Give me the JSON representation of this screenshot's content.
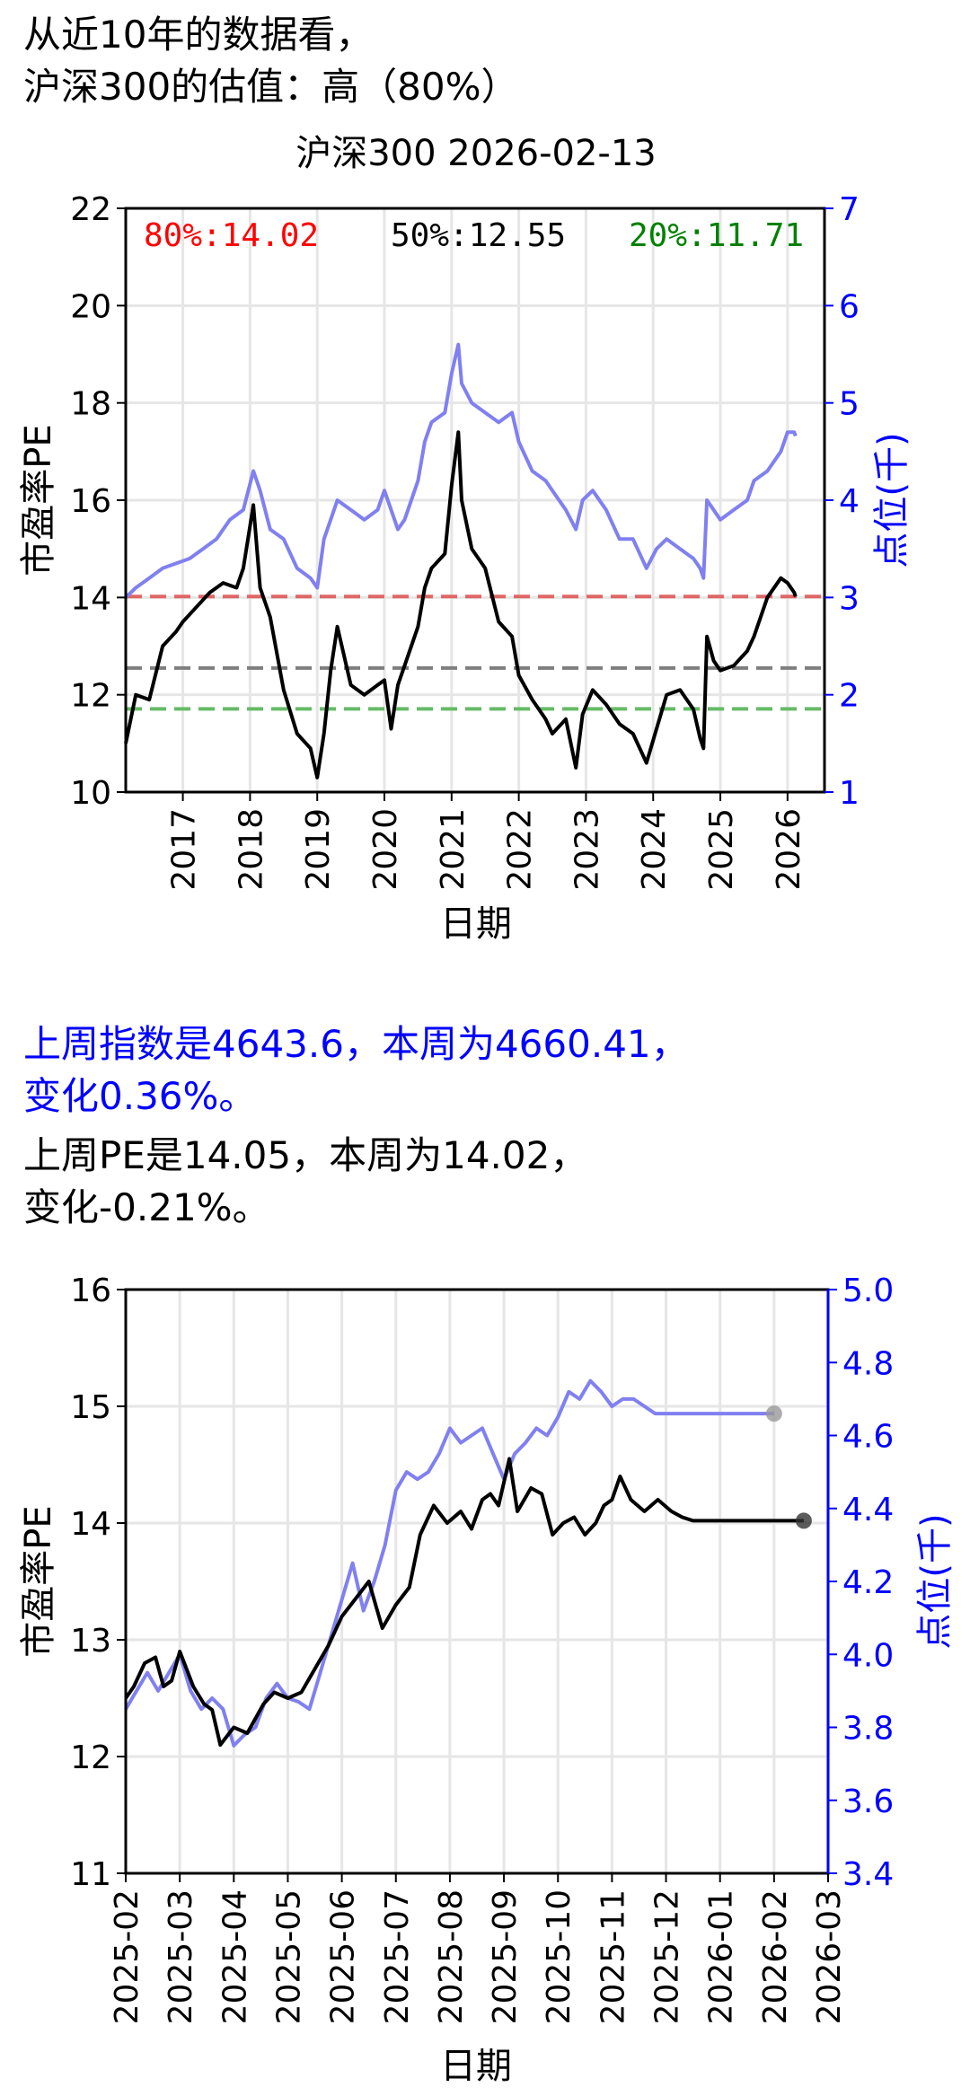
{
  "header": {
    "line1": "从近10年的数据看，",
    "line2": "沪深300的估值：高（80%）"
  },
  "summary": {
    "index_line1": "上周指数是4643.6，本周为4660.41，",
    "index_line2": "变化0.36%。",
    "pe_line1": "上周PE是14.05，本周为14.02，",
    "pe_line2": "变化-0.21%。"
  },
  "colors": {
    "pe": "#000000",
    "index": "#8080f0",
    "axis_right": "#0000ff",
    "p80": "#e06666",
    "p50": "#7f7f7f",
    "p20": "#66bb66"
  },
  "chart_data": [
    {
      "type": "line",
      "title": "沪深300 2026-02-13",
      "xlabel": "日期",
      "ylabel": "市盈率PE",
      "y2label": "点位(千)",
      "ylim": [
        10,
        22
      ],
      "y2lim": [
        1,
        7
      ],
      "xlim": [
        2016.15,
        2026.55
      ],
      "x_ticks": [
        "2017",
        "2018",
        "2019",
        "2020",
        "2021",
        "2022",
        "2023",
        "2024",
        "2025",
        "2026"
      ],
      "y_ticks": [
        "10",
        "12",
        "14",
        "16",
        "18",
        "20",
        "22"
      ],
      "y2_ticks": [
        "1",
        "2",
        "3",
        "4",
        "5",
        "6",
        "7"
      ],
      "grid": true,
      "percentile_lines": [
        {
          "label": "80%:14.02",
          "value": 14.02,
          "color": "#ff0000"
        },
        {
          "label": "50%:12.55",
          "value": 12.55,
          "color": "#000000"
        },
        {
          "label": "20%:11.71",
          "value": 11.71,
          "color": "#008000"
        }
      ],
      "series": [
        {
          "role": "pe",
          "axis": "left",
          "x": [
            2016.15,
            2016.3,
            2016.5,
            2016.7,
            2016.9,
            2017.0,
            2017.2,
            2017.4,
            2017.6,
            2017.8,
            2017.9,
            2018.05,
            2018.15,
            2018.3,
            2018.5,
            2018.7,
            2018.9,
            2019.0,
            2019.1,
            2019.2,
            2019.3,
            2019.5,
            2019.7,
            2019.9,
            2020.0,
            2020.1,
            2020.2,
            2020.3,
            2020.5,
            2020.6,
            2020.7,
            2020.9,
            2021.0,
            2021.1,
            2021.15,
            2021.3,
            2021.5,
            2021.7,
            2021.9,
            2022.0,
            2022.2,
            2022.4,
            2022.5,
            2022.7,
            2022.85,
            2022.95,
            2023.1,
            2023.3,
            2023.5,
            2023.7,
            2023.9,
            2024.05,
            2024.2,
            2024.4,
            2024.6,
            2024.7,
            2024.75,
            2024.8,
            2024.9,
            2025.0,
            2025.2,
            2025.4,
            2025.5,
            2025.7,
            2025.9,
            2026.0,
            2026.1,
            2026.12
          ],
          "y": [
            11.0,
            12.0,
            11.9,
            13.0,
            13.3,
            13.5,
            13.8,
            14.1,
            14.3,
            14.2,
            14.6,
            15.9,
            14.2,
            13.6,
            12.1,
            11.2,
            10.9,
            10.3,
            11.2,
            12.5,
            13.4,
            12.2,
            12.0,
            12.2,
            12.3,
            11.3,
            12.2,
            12.6,
            13.4,
            14.2,
            14.6,
            14.9,
            16.3,
            17.4,
            16.0,
            15.0,
            14.6,
            13.5,
            13.2,
            12.4,
            11.9,
            11.5,
            11.2,
            11.5,
            10.5,
            11.6,
            12.1,
            11.8,
            11.4,
            11.2,
            10.6,
            11.3,
            12.0,
            12.1,
            11.7,
            11.1,
            10.9,
            13.2,
            12.7,
            12.5,
            12.6,
            12.9,
            13.2,
            14.0,
            14.4,
            14.3,
            14.1,
            14.02
          ]
        },
        {
          "role": "index",
          "axis": "right",
          "x": [
            2016.15,
            2016.3,
            2016.5,
            2016.7,
            2016.9,
            2017.1,
            2017.3,
            2017.5,
            2017.7,
            2017.9,
            2018.05,
            2018.15,
            2018.3,
            2018.5,
            2018.7,
            2018.9,
            2019.0,
            2019.1,
            2019.2,
            2019.3,
            2019.5,
            2019.7,
            2019.9,
            2020.0,
            2020.1,
            2020.2,
            2020.3,
            2020.5,
            2020.6,
            2020.7,
            2020.9,
            2021.0,
            2021.1,
            2021.15,
            2021.3,
            2021.5,
            2021.7,
            2021.9,
            2022.0,
            2022.2,
            2022.4,
            2022.5,
            2022.7,
            2022.85,
            2022.95,
            2023.1,
            2023.3,
            2023.5,
            2023.7,
            2023.9,
            2024.05,
            2024.2,
            2024.4,
            2024.6,
            2024.7,
            2024.75,
            2024.8,
            2024.9,
            2025.0,
            2025.2,
            2025.4,
            2025.5,
            2025.7,
            2025.9,
            2026.0,
            2026.1,
            2026.12
          ],
          "y": [
            3.0,
            3.1,
            3.2,
            3.3,
            3.35,
            3.4,
            3.5,
            3.6,
            3.8,
            3.9,
            4.3,
            4.1,
            3.7,
            3.6,
            3.3,
            3.2,
            3.1,
            3.6,
            3.8,
            4.0,
            3.9,
            3.8,
            3.9,
            4.1,
            3.9,
            3.7,
            3.8,
            4.2,
            4.6,
            4.8,
            4.9,
            5.3,
            5.6,
            5.2,
            5.0,
            4.9,
            4.8,
            4.9,
            4.6,
            4.3,
            4.2,
            4.1,
            3.9,
            3.7,
            4.0,
            4.1,
            3.9,
            3.6,
            3.6,
            3.3,
            3.5,
            3.6,
            3.5,
            3.4,
            3.3,
            3.2,
            4.0,
            3.9,
            3.8,
            3.9,
            4.0,
            4.2,
            4.3,
            4.5,
            4.7,
            4.7,
            4.66
          ]
        }
      ]
    },
    {
      "type": "line",
      "title": "",
      "xlabel": "日期",
      "ylabel": "市盈率PE",
      "y2label": "点位(千)",
      "ylim": [
        11,
        16
      ],
      "y2lim": [
        3.4,
        5.0
      ],
      "x_ticks": [
        "2025-02",
        "2025-03",
        "2025-04",
        "2025-05",
        "2025-06",
        "2025-07",
        "2025-08",
        "2025-09",
        "2025-10",
        "2025-11",
        "2025-12",
        "2026-01",
        "2026-02",
        "2026-03"
      ],
      "y_ticks": [
        "11",
        "12",
        "13",
        "14",
        "15",
        "16"
      ],
      "y2_ticks": [
        "3.4",
        "3.6",
        "3.8",
        "4.0",
        "4.2",
        "4.4",
        "4.6",
        "4.8",
        "5.0"
      ],
      "grid": true,
      "series": [
        {
          "role": "pe",
          "axis": "left",
          "x": [
            0,
            0.15,
            0.35,
            0.55,
            0.7,
            0.85,
            1.0,
            1.25,
            1.45,
            1.6,
            1.75,
            2.0,
            2.25,
            2.55,
            2.75,
            3.0,
            3.25,
            3.5,
            3.75,
            4.0,
            4.25,
            4.5,
            4.75,
            5.0,
            5.25,
            5.45,
            5.7,
            5.95,
            6.2,
            6.4,
            6.6,
            6.75,
            6.9,
            7.1,
            7.25,
            7.5,
            7.7,
            7.9,
            8.1,
            8.3,
            8.5,
            8.7,
            8.85,
            9.0,
            9.15,
            9.35,
            9.6,
            9.85,
            10.1,
            10.3,
            10.5,
            10.7,
            10.9,
            11.1,
            11.35,
            11.55,
            11.8,
            12.05,
            12.25,
            12.45,
            12.55
          ],
          "y": [
            12.5,
            12.6,
            12.8,
            12.85,
            12.6,
            12.65,
            12.9,
            12.6,
            12.45,
            12.4,
            12.1,
            12.25,
            12.2,
            12.45,
            12.55,
            12.5,
            12.55,
            12.75,
            12.95,
            13.2,
            13.35,
            13.5,
            13.1,
            13.3,
            13.45,
            13.9,
            14.15,
            14.0,
            14.1,
            13.95,
            14.2,
            14.25,
            14.15,
            14.55,
            14.1,
            14.3,
            14.25,
            13.9,
            14.0,
            14.05,
            13.9,
            14.0,
            14.15,
            14.2,
            14.4,
            14.2,
            14.1,
            14.2,
            14.1,
            14.05,
            14.02,
            14.02,
            14.02,
            14.02,
            14.02,
            14.02,
            14.02,
            14.02,
            14.02,
            14.02,
            14.02
          ],
          "marker_last": true
        },
        {
          "role": "index",
          "axis": "right",
          "x": [
            0,
            0.2,
            0.4,
            0.6,
            0.8,
            1.0,
            1.2,
            1.4,
            1.6,
            1.8,
            2.0,
            2.2,
            2.4,
            2.6,
            2.8,
            3.0,
            3.2,
            3.4,
            3.6,
            3.8,
            4.0,
            4.2,
            4.4,
            4.6,
            4.8,
            5.0,
            5.2,
            5.4,
            5.6,
            5.8,
            6.0,
            6.2,
            6.4,
            6.6,
            6.8,
            7.0,
            7.2,
            7.4,
            7.6,
            7.8,
            8.0,
            8.2,
            8.4,
            8.6,
            8.8,
            9.0,
            9.2,
            9.4,
            9.6,
            9.8,
            10.0,
            10.2,
            10.4,
            10.6,
            10.8,
            11.0,
            11.2,
            11.4,
            11.6,
            11.8,
            12.0
          ],
          "y": [
            3.85,
            3.9,
            3.95,
            3.9,
            3.95,
            4.0,
            3.9,
            3.85,
            3.88,
            3.85,
            3.75,
            3.78,
            3.8,
            3.88,
            3.92,
            3.88,
            3.87,
            3.85,
            3.95,
            4.05,
            4.15,
            4.25,
            4.12,
            4.2,
            4.3,
            4.45,
            4.5,
            4.48,
            4.5,
            4.55,
            4.62,
            4.58,
            4.6,
            4.62,
            4.55,
            4.48,
            4.55,
            4.58,
            4.62,
            4.6,
            4.65,
            4.72,
            4.7,
            4.75,
            4.72,
            4.68,
            4.7,
            4.7,
            4.68,
            4.66,
            4.66,
            4.66,
            4.66,
            4.66,
            4.66,
            4.66,
            4.66,
            4.66,
            4.66,
            4.66,
            4.66
          ],
          "marker_last": true
        }
      ]
    }
  ]
}
